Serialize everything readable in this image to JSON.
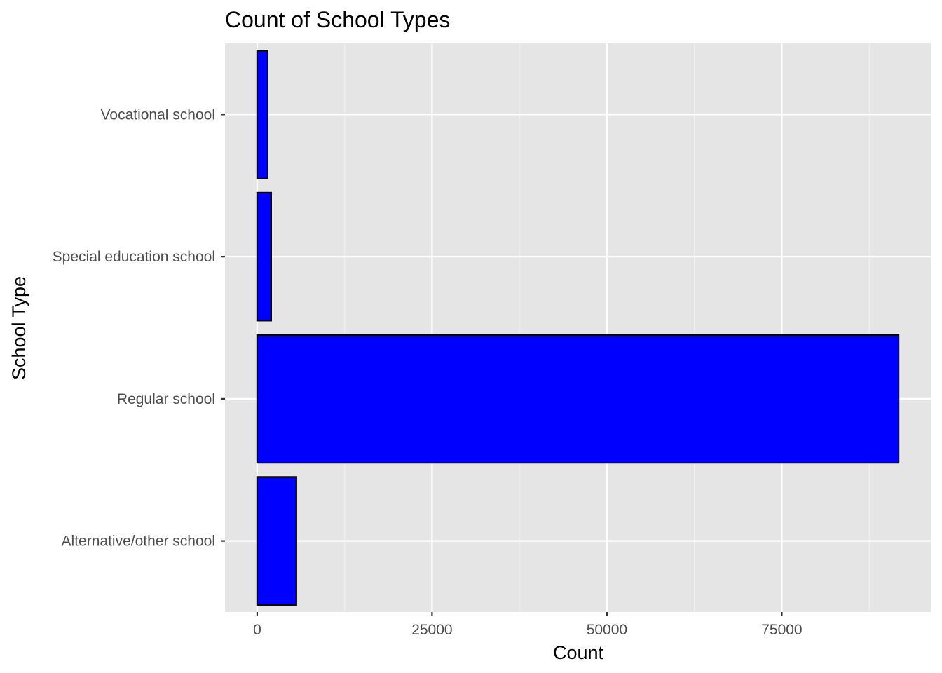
{
  "chart_data": {
    "type": "bar",
    "orientation": "horizontal",
    "title": "Count of School Types",
    "xlabel": "Count",
    "ylabel": "School Type",
    "categories": [
      "Alternative/other school",
      "Regular school",
      "Special education school",
      "Vocational school"
    ],
    "values": [
      5600,
      91700,
      2000,
      1500
    ],
    "xlim": [
      -4600,
      96300
    ],
    "xticks": [
      0,
      25000,
      50000,
      75000
    ],
    "xtick_labels": [
      "0",
      "25000",
      "50000",
      "75000"
    ],
    "grid": true,
    "legend": "none",
    "colors": {
      "bar_fill": "#0000ff",
      "bar_stroke": "#000000",
      "panel_background": "#e5e5e5",
      "grid_major": "#ffffff",
      "grid_minor": "#f2f2f2"
    }
  }
}
